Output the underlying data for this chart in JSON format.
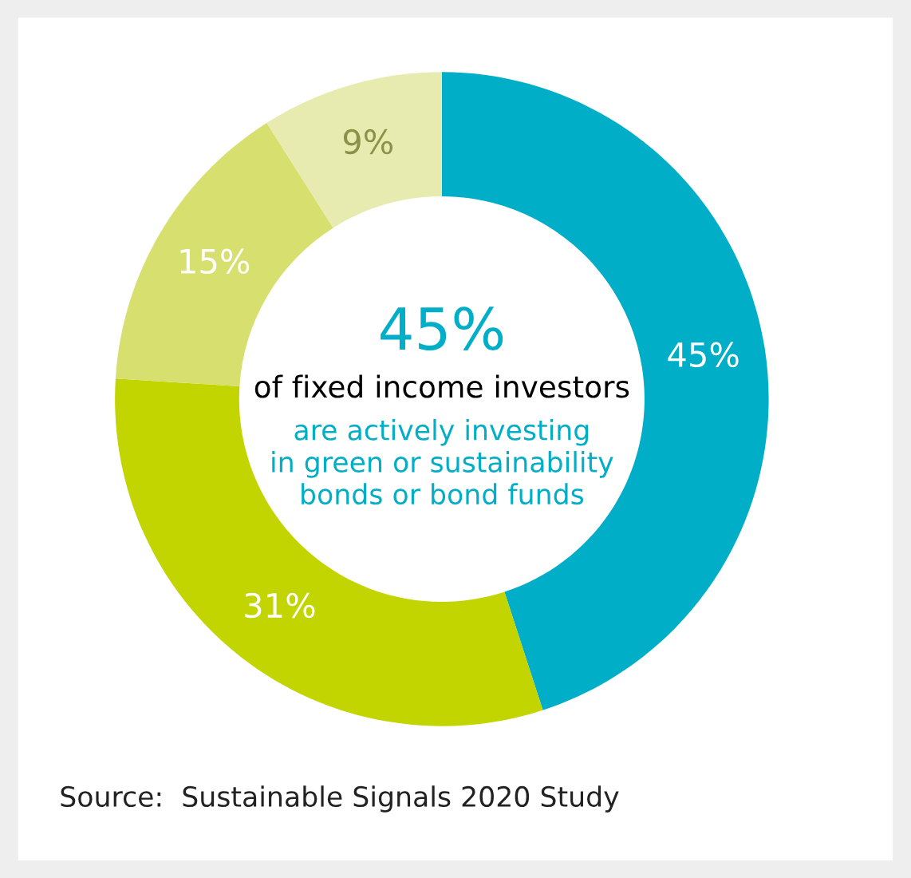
{
  "chart_data": {
    "type": "donut",
    "categories": [
      null,
      null,
      null,
      null
    ],
    "values": [
      45,
      31,
      15,
      9
    ],
    "colors": [
      "#00aec7",
      "#c2d500",
      "#d7df6e",
      "#e8ebb0"
    ],
    "value_labels": [
      "45%",
      "31%",
      "15%",
      "9%"
    ],
    "annotations": [
      "45%",
      "of fixed income investors",
      "are actively investing\nin green or sustainability\nbonds or bond funds",
      "Source:  Sustainable Signals 2020 Study"
    ]
  }
}
